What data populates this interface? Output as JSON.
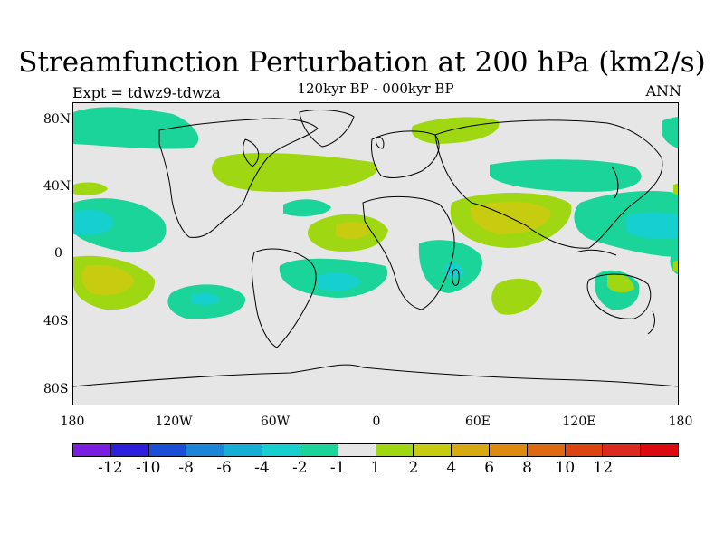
{
  "title": "Streamfunction Perturbation at 200 hPa (km2/s)",
  "subtitle": "120kyr BP - 000kyr BP",
  "left_label": "Expt = tdwz9-tdwza",
  "right_label": "ANN",
  "map": {
    "projection": "cylindrical-equidistant",
    "background_color": "#e6e6e6",
    "coastline_color": "#000000",
    "lat_ticks": [
      "80N",
      "40N",
      "0",
      "40S",
      "80S"
    ],
    "lon_ticks": [
      "180",
      "120W",
      "60W",
      "0",
      "60E",
      "120E",
      "180"
    ]
  },
  "colorbar": {
    "colors": [
      "#7a1fe0",
      "#2e1fdc",
      "#1a4fd6",
      "#1b86d8",
      "#17aed6",
      "#16cfcf",
      "#1bd49a",
      "#e6e6e6",
      "#9fd812",
      "#c8cc10",
      "#d6aa10",
      "#dc8a10",
      "#dc6a10",
      "#dc4410",
      "#dc2a20",
      "#dc0a10"
    ],
    "labels": [
      "-12",
      "-10",
      "-8",
      "-6",
      "-4",
      "-2",
      "-1",
      "1",
      "2",
      "4",
      "6",
      "8",
      "10",
      "12"
    ]
  }
}
